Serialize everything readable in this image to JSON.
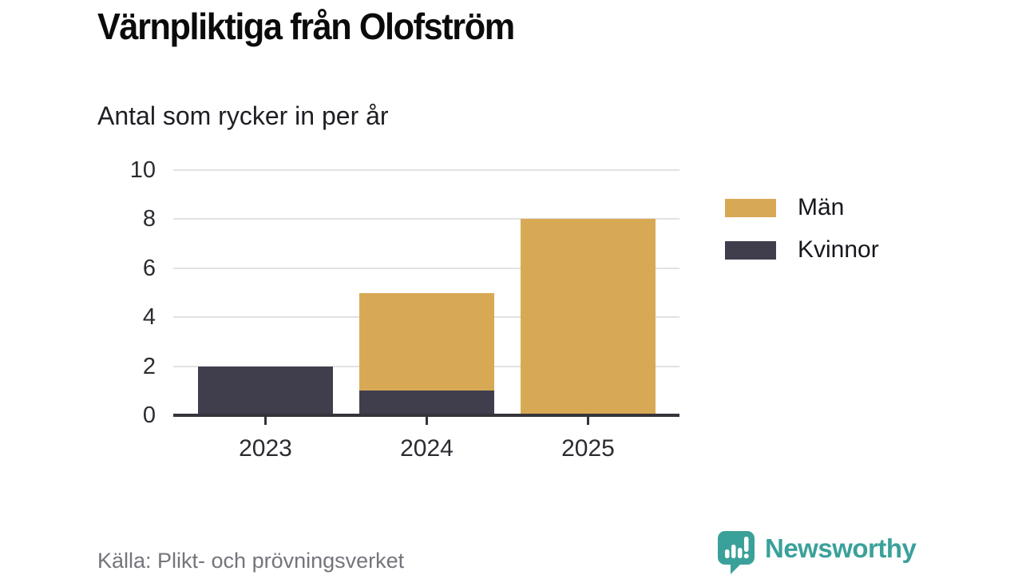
{
  "header": {
    "title": "Värnpliktiga från Olofström",
    "subtitle": "Antal som rycker in per år"
  },
  "footer": {
    "source": "Källa: Plikt- och prövningsverket",
    "brand": "Newsworthy"
  },
  "colors": {
    "men": "#d8a955",
    "women": "#403e4d",
    "axis": "#35343b",
    "grid": "#e2e2e4",
    "brand_teal": "#3aa19a",
    "source_gray": "#74747c"
  },
  "chart_data": {
    "type": "bar",
    "stacked": true,
    "title": "Värnpliktiga från Olofström",
    "subtitle": "Antal som rycker in per år",
    "categories": [
      "2023",
      "2024",
      "2025"
    ],
    "series": [
      {
        "name": "Män",
        "color": "#d8a955",
        "values": [
          0,
          4,
          8
        ]
      },
      {
        "name": "Kvinnor",
        "color": "#403e4d",
        "values": [
          2,
          1,
          0
        ]
      }
    ],
    "totals": [
      2,
      5,
      8
    ],
    "xlabel": "",
    "ylabel": "",
    "ylim": [
      0,
      10
    ],
    "yticks": [
      0,
      2,
      4,
      6,
      8,
      10
    ],
    "grid": true,
    "legend_position": "right",
    "legend_order": [
      "Män",
      "Kvinnor"
    ],
    "source": "Källa: Plikt- och prövningsverket"
  }
}
